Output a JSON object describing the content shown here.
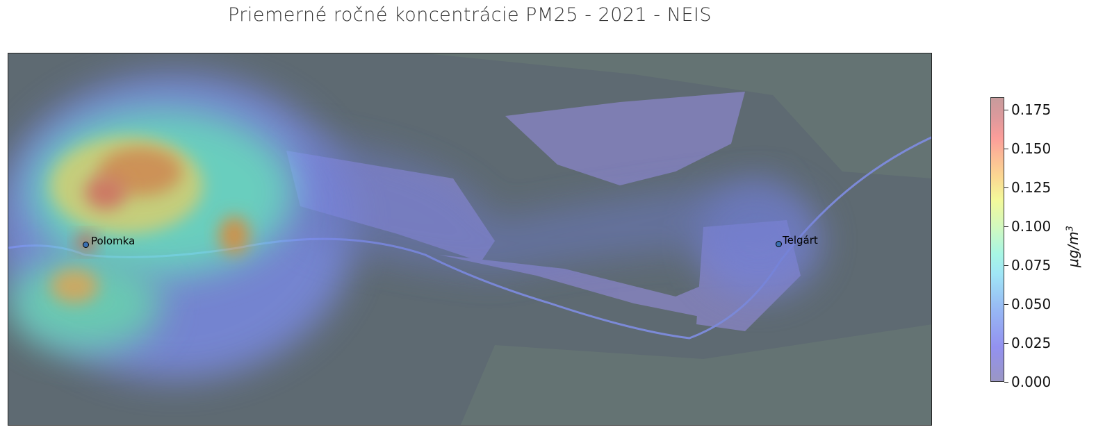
{
  "title": "Priemerné ročné koncentrácie PM25 - 2021 - NEIS",
  "map": {
    "base_color": "#5e6a72",
    "locations": [
      {
        "name": "Polomka"
      },
      {
        "name": "Telgárt"
      }
    ]
  },
  "colorbar": {
    "label_prefix": "μg/m",
    "label_sup": "3",
    "range": [
      0,
      0.183
    ],
    "ticks": [
      "0.000",
      "0.025",
      "0.050",
      "0.075",
      "0.100",
      "0.125",
      "0.150",
      "0.175"
    ],
    "colormap": "jet (semi-transparent)"
  }
}
